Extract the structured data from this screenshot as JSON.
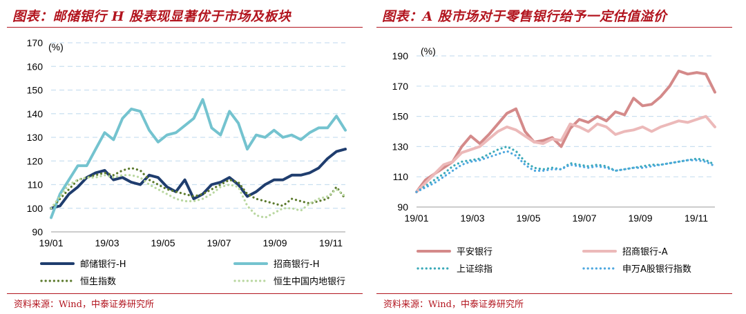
{
  "left": {
    "title": "图表：邮储银行 H 股表现显著优于市场及板块",
    "source": "资料来源：Wind，中泰证券研究所",
    "unit_label": "(%)",
    "chart_data": {
      "type": "line",
      "x": [
        "19/01",
        "",
        "",
        "",
        "",
        "",
        "19/03",
        "",
        "",
        "",
        "",
        "",
        "19/05",
        "",
        "",
        "",
        "",
        "",
        "19/07",
        "",
        "",
        "",
        "",
        "",
        "19/09",
        "",
        "",
        "",
        "",
        "",
        "19/11",
        "",
        "",
        ""
      ],
      "x_ticks": [
        "19/01",
        "19/03",
        "19/05",
        "19/07",
        "19/09",
        "19/11"
      ],
      "y_ticks": [
        90,
        100,
        110,
        120,
        130,
        140,
        150,
        160,
        170
      ],
      "ylim": [
        90,
        170
      ],
      "ylabel": "(%)",
      "grid": true,
      "legend_position": "bottom",
      "series": [
        {
          "name": "邮储银行-H",
          "color": "#1f3d6e",
          "style": "solid",
          "values": [
            100,
            101,
            106,
            109,
            113,
            115,
            116,
            112,
            113,
            111,
            110,
            114,
            113,
            109,
            107,
            112,
            104,
            106,
            110,
            111,
            113,
            110,
            105,
            107,
            110,
            112,
            112,
            114,
            114,
            115,
            117,
            121,
            124,
            125
          ]
        },
        {
          "name": "招商银行-H",
          "color": "#74c3cf",
          "style": "solid",
          "values": [
            96,
            106,
            112,
            118,
            118,
            125,
            132,
            129,
            138,
            142,
            141,
            133,
            128,
            131,
            132,
            135,
            138,
            146,
            134,
            131,
            141,
            136,
            125,
            131,
            130,
            133,
            130,
            131,
            129,
            132,
            134,
            134,
            139,
            133
          ]
        },
        {
          "name": "恒生指数",
          "color": "#5c7a2d",
          "style": "dotted",
          "values": [
            100,
            104,
            108,
            112,
            113,
            114,
            115,
            114,
            116,
            117,
            116,
            112,
            110,
            108,
            107,
            106,
            105,
            106,
            108,
            110,
            112,
            111,
            106,
            104,
            103,
            102,
            101,
            104,
            103,
            102,
            103,
            104,
            109,
            104
          ]
        },
        {
          "name": "恒生中国内地银行",
          "color": "#b9d7a0",
          "style": "dotted",
          "values": [
            100,
            105,
            110,
            112,
            113,
            113,
            114,
            113,
            114,
            114,
            113,
            110,
            108,
            106,
            104,
            103,
            103,
            104,
            106,
            109,
            110,
            109,
            101,
            97,
            96,
            98,
            100,
            100,
            99,
            102,
            104,
            105,
            108,
            105
          ]
        }
      ]
    }
  },
  "right": {
    "title": "图表：A 股市场对于零售银行给予一定估值溢价",
    "source": "资料来源：Wind，中泰证券研究所",
    "unit_label": "(%)",
    "chart_data": {
      "type": "line",
      "x_ticks": [
        "19/01",
        "19/03",
        "19/05",
        "19/07",
        "19/09",
        "19/11"
      ],
      "y_ticks": [
        90,
        110,
        130,
        150,
        170,
        190
      ],
      "ylim": [
        90,
        190
      ],
      "ylabel": "(%)",
      "grid": true,
      "legend_position": "bottom",
      "series": [
        {
          "name": "平安银行",
          "color": "#d48a8a",
          "style": "solid",
          "values": [
            100,
            108,
            112,
            116,
            120,
            130,
            137,
            132,
            138,
            145,
            152,
            155,
            140,
            133,
            134,
            136,
            130,
            142,
            148,
            146,
            150,
            147,
            153,
            151,
            162,
            157,
            158,
            163,
            170,
            180,
            178,
            179,
            178,
            166
          ]
        },
        {
          "name": "招商银行-A",
          "color": "#ecb9b9",
          "style": "solid",
          "values": [
            100,
            106,
            112,
            118,
            120,
            126,
            128,
            130,
            135,
            140,
            143,
            141,
            137,
            133,
            132,
            135,
            134,
            145,
            143,
            140,
            145,
            143,
            138,
            140,
            141,
            143,
            140,
            143,
            145,
            147,
            146,
            148,
            150,
            143
          ]
        },
        {
          "name": "上证综指",
          "color": "#3aa9b8",
          "style": "dotted",
          "values": [
            100,
            104,
            108,
            112,
            117,
            120,
            121,
            122,
            125,
            128,
            130,
            127,
            120,
            116,
            115,
            116,
            115,
            119,
            118,
            117,
            118,
            117,
            114,
            115,
            116,
            117,
            118,
            118,
            119,
            120,
            121,
            122,
            121,
            118
          ]
        },
        {
          "name": "申万A股银行指数",
          "color": "#4da7df",
          "style": "dotted",
          "values": [
            100,
            103,
            106,
            110,
            114,
            118,
            120,
            121,
            123,
            125,
            127,
            124,
            118,
            114,
            114,
            115,
            115,
            118,
            117,
            116,
            117,
            116,
            114,
            115,
            116,
            116,
            117,
            118,
            119,
            120,
            121,
            121,
            120,
            117
          ]
        }
      ]
    }
  }
}
